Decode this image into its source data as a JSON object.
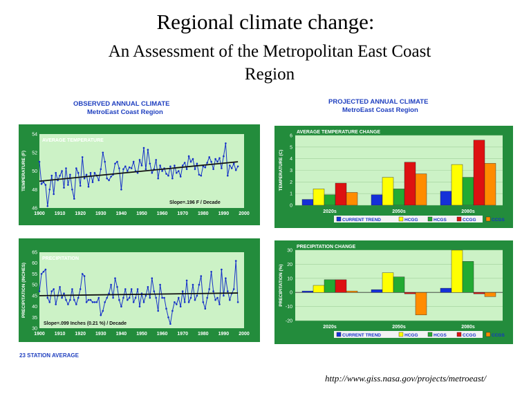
{
  "title": "Regional climate change:",
  "subtitle": "An Assessment of the Metropolitan East Coast Region",
  "observed_header": {
    "line1": "OBSERVED ANNUAL CLIMATE",
    "line2": "MetroEast Coast Region"
  },
  "projected_header": {
    "line1": "PROJECTED ANNUAL CLIMATE",
    "line2": "MetroEast Coast Region"
  },
  "footnote": "23 STATION AVERAGE",
  "url": "http://www.giss.nasa.gov/projects/metroeast/",
  "colors": {
    "panel_bg": "#238c3c",
    "plot_bg": "#ccf2c6",
    "observed_line": "#1530c8",
    "trend_line": "#111111",
    "current_trend": "#1530d8",
    "hcgg": "#ffff00",
    "hcgs": "#22aa33",
    "ccgg": "#dd1111",
    "ccgs": "#ff8c00"
  },
  "chart_data": [
    {
      "type": "line",
      "title": "AVERAGE TEMPERATURE",
      "ylabel": "TEMPERATURE (F)",
      "xlabel": "",
      "xlim": [
        1900,
        2000
      ],
      "ylim": [
        46,
        54
      ],
      "xticks": [
        "1900",
        "1910",
        "1920",
        "1930",
        "1940",
        "1950",
        "1960",
        "1970",
        "1980",
        "1990",
        "2000"
      ],
      "yticks": [
        "46",
        "48",
        "50",
        "52",
        "54"
      ],
      "annotation": "Slope=.196 F / Decade",
      "trend": {
        "x": [
          1900,
          1997
        ],
        "y": [
          48.9,
          51.0
        ]
      },
      "series": [
        {
          "x": [
            1900,
            1901,
            1902,
            1903,
            1904,
            1905,
            1906,
            1907,
            1908,
            1909,
            1910,
            1911,
            1912,
            1913,
            1914,
            1915,
            1916,
            1917,
            1918,
            1919,
            1920,
            1921,
            1922,
            1923,
            1924,
            1925,
            1926,
            1927,
            1928,
            1929,
            1930,
            1931,
            1932,
            1933,
            1934,
            1935,
            1936,
            1937,
            1938,
            1939,
            1940,
            1941,
            1942,
            1943,
            1944,
            1945,
            1946,
            1947,
            1948,
            1949,
            1950,
            1951,
            1952,
            1953,
            1954,
            1955,
            1956,
            1957,
            1958,
            1959,
            1960,
            1961,
            1962,
            1963,
            1964,
            1965,
            1966,
            1967,
            1968,
            1969,
            1970,
            1971,
            1972,
            1973,
            1974,
            1975,
            1976,
            1977,
            1978,
            1979,
            1980,
            1981,
            1982,
            1983,
            1984,
            1985,
            1986,
            1987,
            1988,
            1989,
            1990,
            1991,
            1992,
            1993,
            1994,
            1995,
            1996,
            1997
          ],
          "y": [
            51.0,
            48.6,
            48.8,
            48.5,
            46.2,
            48.0,
            49.5,
            47.5,
            49.8,
            49.0,
            49.5,
            50.0,
            48.2,
            50.3,
            48.5,
            49.6,
            48.0,
            47.0,
            50.3,
            49.8,
            48.4,
            51.5,
            49.2,
            49.6,
            48.3,
            49.8,
            48.8,
            49.8,
            49.5,
            49.0,
            50.2,
            52.0,
            51.0,
            49.2,
            49.0,
            49.4,
            49.6,
            50.8,
            51.0,
            50.3,
            48.0,
            50.2,
            50.5,
            50.0,
            50.4,
            50.3,
            51.0,
            50.0,
            49.8,
            51.2,
            50.6,
            52.5,
            50.2,
            52.3,
            50.8,
            49.8,
            50.2,
            51.2,
            49.2,
            50.6,
            50.0,
            50.3,
            49.7,
            49.5,
            50.5,
            49.2,
            50.6,
            49.8,
            50.0,
            49.4,
            50.6,
            50.9,
            50.2,
            51.6,
            51.0,
            51.3,
            50.2,
            50.8,
            49.6,
            49.5,
            50.5,
            50.4,
            50.9,
            51.5,
            51.0,
            50.2,
            51.3,
            51.0,
            51.4,
            50.3,
            51.6,
            53.0,
            49.5,
            50.6,
            50.3,
            50.8,
            50.1,
            50.5
          ]
        }
      ]
    },
    {
      "type": "line",
      "title": "PRECIPITATION",
      "ylabel": "PRECIPITATION (INCHES)",
      "xlabel": "",
      "xlim": [
        1900,
        2000
      ],
      "ylim": [
        30,
        65
      ],
      "xticks": [
        "1900",
        "1910",
        "1920",
        "1930",
        "1940",
        "1950",
        "1960",
        "1970",
        "1980",
        "1990",
        "2000"
      ],
      "yticks": [
        "30",
        "35",
        "40",
        "45",
        "50",
        "55",
        "60",
        "65"
      ],
      "annotation": "Slope=.099 Inches (0.21 %) / Decade",
      "trend": {
        "x": [
          1900,
          1997
        ],
        "y": [
          45.0,
          46.2
        ]
      },
      "series": [
        {
          "x": [
            1900,
            1901,
            1902,
            1903,
            1904,
            1905,
            1906,
            1907,
            1908,
            1909,
            1910,
            1911,
            1912,
            1913,
            1914,
            1915,
            1916,
            1917,
            1918,
            1919,
            1920,
            1921,
            1922,
            1923,
            1924,
            1925,
            1926,
            1927,
            1928,
            1929,
            1930,
            1931,
            1932,
            1933,
            1934,
            1935,
            1936,
            1937,
            1938,
            1939,
            1940,
            1941,
            1942,
            1943,
            1944,
            1945,
            1946,
            1947,
            1948,
            1949,
            1950,
            1951,
            1952,
            1953,
            1954,
            1955,
            1956,
            1957,
            1958,
            1959,
            1960,
            1961,
            1962,
            1963,
            1964,
            1965,
            1966,
            1967,
            1968,
            1969,
            1970,
            1971,
            1972,
            1973,
            1974,
            1975,
            1976,
            1977,
            1978,
            1979,
            1980,
            1981,
            1982,
            1983,
            1984,
            1985,
            1986,
            1987,
            1988,
            1989,
            1990,
            1991,
            1992,
            1993,
            1994,
            1995,
            1996,
            1997
          ],
          "y": [
            47,
            55,
            56,
            57,
            44,
            42,
            47,
            48,
            41,
            45,
            49,
            44,
            46,
            43,
            41,
            43,
            48,
            43,
            41,
            44,
            48,
            55,
            54,
            42,
            43,
            43,
            42,
            42,
            42,
            44,
            36,
            38,
            42,
            44,
            46,
            50,
            44,
            53,
            49,
            43,
            40,
            44,
            48,
            43,
            44,
            48,
            42,
            44,
            48,
            40,
            46,
            42,
            45,
            49,
            44,
            53,
            47,
            44,
            38,
            50,
            44,
            44,
            39,
            35,
            32,
            38,
            42,
            41,
            44,
            40,
            47,
            42,
            52,
            42,
            44,
            50,
            43,
            45,
            50,
            54,
            42,
            39,
            44,
            48,
            56,
            47,
            43,
            44,
            41,
            57,
            45,
            53,
            47,
            43,
            46,
            48,
            61,
            42
          ]
        }
      ]
    },
    {
      "type": "bar",
      "title": "AVERAGE TEMPERATURE CHANGE",
      "ylabel": "TEMPERATURE (C)",
      "xlabel": "",
      "categories": [
        "2020s",
        "2050s",
        "2080s"
      ],
      "ylim": [
        0,
        6
      ],
      "yticks": [
        "0",
        "1",
        "2",
        "3",
        "4",
        "5",
        "6"
      ],
      "series": [
        {
          "name": "CURRENT TREND",
          "values": [
            0.5,
            0.9,
            1.2
          ]
        },
        {
          "name": "HCGG",
          "values": [
            1.4,
            2.4,
            3.5
          ]
        },
        {
          "name": "HCGS",
          "values": [
            0.9,
            1.4,
            2.4
          ]
        },
        {
          "name": "CCGG",
          "values": [
            1.9,
            3.7,
            5.6
          ]
        },
        {
          "name": "CCGS",
          "values": [
            1.1,
            2.7,
            3.6
          ]
        }
      ]
    },
    {
      "type": "bar",
      "title": "PRECIPITATION CHANGE",
      "ylabel": "PRECIPITATION (%)",
      "xlabel": "",
      "categories": [
        "2020s",
        "2050s",
        "2080s"
      ],
      "ylim": [
        -20,
        30
      ],
      "yticks": [
        "-20",
        "-10",
        "0",
        "10",
        "20",
        "30"
      ],
      "series": [
        {
          "name": "CURRENT TREND",
          "values": [
            1,
            2,
            3
          ]
        },
        {
          "name": "HCGG",
          "values": [
            5,
            14,
            30
          ]
        },
        {
          "name": "HCGS",
          "values": [
            9,
            11,
            22
          ]
        },
        {
          "name": "CCGG",
          "values": [
            9,
            -1,
            -1
          ]
        },
        {
          "name": "CCGS",
          "values": [
            1,
            -16,
            -3
          ]
        }
      ]
    }
  ]
}
